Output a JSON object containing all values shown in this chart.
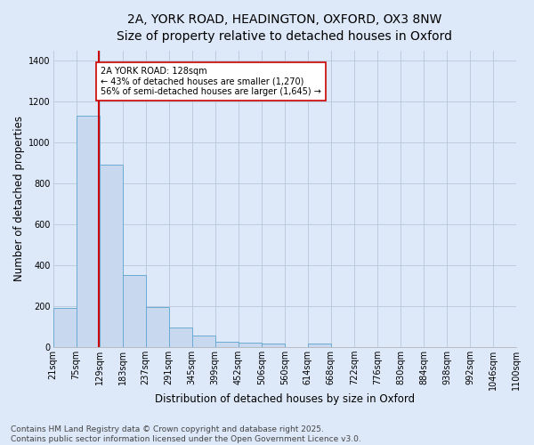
{
  "title_line1": "2A, YORK ROAD, HEADINGTON, OXFORD, OX3 8NW",
  "title_line2": "Size of property relative to detached houses in Oxford",
  "xlabel": "Distribution of detached houses by size in Oxford",
  "ylabel": "Number of detached properties",
  "bar_heights": [
    190,
    1130,
    890,
    350,
    195,
    95,
    55,
    25,
    20,
    15,
    0,
    15,
    0,
    0,
    0,
    0,
    0,
    0,
    0,
    0
  ],
  "bin_labels": [
    "21sqm",
    "75sqm",
    "129sqm",
    "183sqm",
    "237sqm",
    "291sqm",
    "345sqm",
    "399sqm",
    "452sqm",
    "506sqm",
    "560sqm",
    "614sqm",
    "668sqm",
    "722sqm",
    "776sqm",
    "830sqm",
    "884sqm",
    "938sqm",
    "992sqm",
    "1046sqm",
    "1100sqm"
  ],
  "n_bars": 20,
  "bar_color": "#c8d8ee",
  "bar_edge_color": "#6aaad4",
  "background_color": "#dde8f8",
  "red_line_x": 1,
  "red_line_color": "#cc0000",
  "annotation_text": "2A YORK ROAD: 128sqm\n← 43% of detached houses are smaller (1,270)\n56% of semi-detached houses are larger (1,645) →",
  "annotation_box_facecolor": "#ffffff",
  "annotation_box_edgecolor": "#cc0000",
  "ylim": [
    0,
    1450
  ],
  "yticks": [
    0,
    200,
    400,
    600,
    800,
    1000,
    1200,
    1400
  ],
  "title_fontsize": 10,
  "subtitle_fontsize": 9.5,
  "axis_label_fontsize": 8.5,
  "tick_fontsize": 7,
  "annotation_fontsize": 7,
  "footer_fontsize": 6.5,
  "footer_text": "Contains HM Land Registry data © Crown copyright and database right 2025.\nContains public sector information licensed under the Open Government Licence v3.0."
}
